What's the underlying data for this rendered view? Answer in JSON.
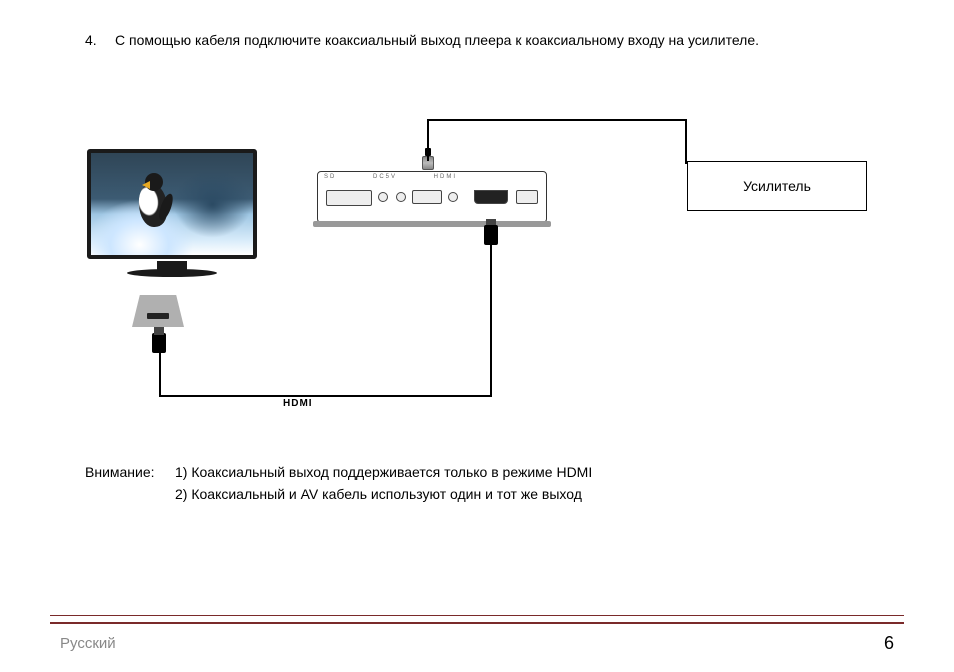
{
  "step": {
    "number": "4.",
    "text": "С помощью кабеля подключите коаксиальный выход плеера к коаксиальному входу на усилителе."
  },
  "diagram": {
    "amplifier_label": "Усилитель",
    "hdmi_label": "HDMI",
    "colors": {
      "cable": "#000000",
      "amplifier_border": "#000000",
      "player_border": "#333333",
      "tv_frame": "#1a1a1a",
      "tv_port": "#b0b0b0",
      "footer_rule": "#7a2a2a"
    }
  },
  "notes": {
    "label": "Внимание:",
    "items": [
      "1) Коаксиальный выход поддерживается только в режиме HDMI",
      "2) Коаксиальный и AV кабель используют один и тот же выход"
    ]
  },
  "footer": {
    "language": "Русский",
    "page_number": "6"
  }
}
